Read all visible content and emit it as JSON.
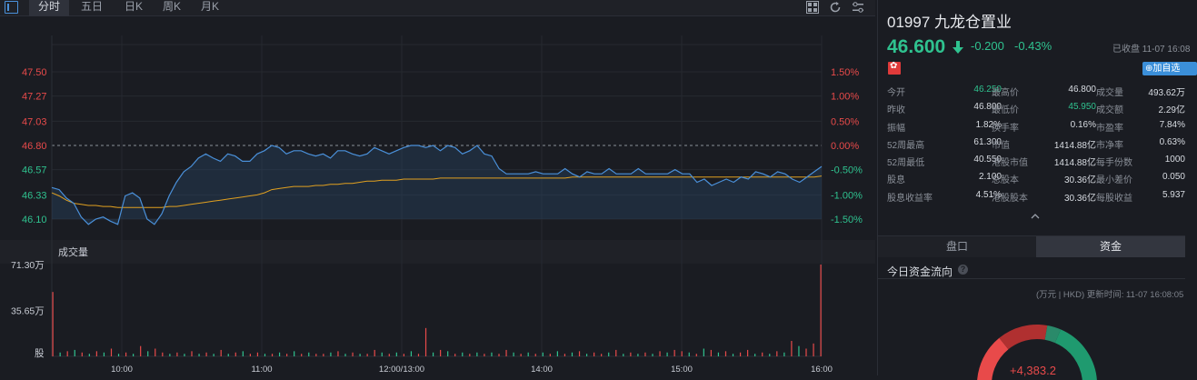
{
  "toolbar": {
    "tabs": [
      {
        "label": "分时",
        "active": true
      },
      {
        "label": "五日",
        "active": false
      },
      {
        "label": "日K",
        "active": false
      },
      {
        "label": "周K",
        "active": false
      },
      {
        "label": "月K",
        "active": false
      }
    ],
    "icons": [
      "grid-layout-icon",
      "refresh-icon",
      "settings-icon"
    ]
  },
  "colors": {
    "up": "#e84a4a",
    "down": "#2fc28f",
    "price_line": "#4a90d9",
    "avg_line": "#e0a020",
    "accent": "#3b8fd9"
  },
  "chart_data": {
    "type": "line",
    "title": "",
    "price_axis": {
      "ticks": [
        "47.50",
        "47.27",
        "47.03",
        "46.80",
        "46.57",
        "46.33",
        "46.10"
      ],
      "tick_values": [
        47.5,
        47.27,
        47.03,
        46.8,
        46.57,
        46.33,
        46.1
      ],
      "ylim": [
        46.1,
        47.5
      ],
      "reference": 46.8
    },
    "percent_axis": {
      "ticks": [
        "1.50%",
        "1.00%",
        "0.50%",
        "0.00%",
        "-0.50%",
        "-1.00%",
        "-1.50%"
      ]
    },
    "time_axis": {
      "ticks": [
        "10:00",
        "11:00",
        "12:00/13:00",
        "14:00",
        "15:00",
        "16:00"
      ]
    },
    "volume_panel": {
      "title": "成交量",
      "ticks": [
        "71.30万",
        "35.65万",
        "股"
      ],
      "max": 71.3
    },
    "price_series": [
      46.4,
      46.38,
      46.3,
      46.25,
      46.12,
      46.05,
      46.1,
      46.12,
      46.08,
      46.05,
      46.32,
      46.35,
      46.3,
      46.1,
      46.05,
      46.15,
      46.32,
      46.45,
      46.55,
      46.6,
      46.68,
      46.72,
      46.68,
      46.65,
      46.72,
      46.7,
      46.65,
      46.65,
      46.72,
      46.75,
      46.8,
      46.78,
      46.72,
      46.75,
      46.75,
      46.72,
      46.7,
      46.72,
      46.68,
      46.75,
      46.75,
      46.72,
      46.7,
      46.72,
      46.78,
      46.75,
      46.72,
      46.75,
      46.78,
      46.8,
      46.8,
      46.78,
      46.8,
      46.75,
      46.8,
      46.78,
      46.72,
      46.75,
      46.8,
      46.72,
      46.7,
      46.58,
      46.53,
      46.53,
      46.53,
      46.53,
      46.55,
      46.53,
      46.53,
      46.53,
      46.58,
      46.53,
      46.5,
      46.55,
      46.53,
      46.53,
      46.58,
      46.53,
      46.53,
      46.53,
      46.58,
      46.53,
      46.53,
      46.53,
      46.53,
      46.57,
      46.53,
      46.53,
      46.45,
      46.48,
      46.42,
      46.45,
      46.48,
      46.45,
      46.5,
      46.48,
      46.55,
      46.53,
      46.5,
      46.55,
      46.53,
      46.48,
      46.45,
      46.5,
      46.55,
      46.6
    ],
    "avg_series": [
      46.35,
      46.32,
      46.28,
      46.25,
      46.24,
      46.23,
      46.23,
      46.22,
      46.22,
      46.21,
      46.21,
      46.21,
      46.21,
      46.21,
      46.21,
      46.21,
      46.22,
      46.22,
      46.23,
      46.24,
      46.25,
      46.26,
      46.27,
      46.28,
      46.29,
      46.3,
      46.31,
      46.32,
      46.33,
      46.35,
      46.38,
      46.39,
      46.4,
      46.41,
      46.41,
      46.41,
      46.42,
      46.42,
      46.43,
      46.43,
      46.44,
      46.44,
      46.45,
      46.46,
      46.46,
      46.47,
      46.47,
      46.47,
      46.48,
      46.48,
      46.48,
      46.48,
      46.48,
      46.49,
      46.49,
      46.49,
      46.49,
      46.49,
      46.49,
      46.49,
      46.49,
      46.49,
      46.49,
      46.49,
      46.49,
      46.49,
      46.49,
      46.49,
      46.49,
      46.49,
      46.49,
      46.5,
      46.5,
      46.5,
      46.5,
      46.5,
      46.5,
      46.5,
      46.5,
      46.5,
      46.5,
      46.5,
      46.5,
      46.5,
      46.5,
      46.5,
      46.5,
      46.5,
      46.5,
      46.5,
      46.5,
      46.5,
      46.5,
      46.5,
      46.5,
      46.5,
      46.5,
      46.5,
      46.5,
      46.5,
      46.5,
      46.5,
      46.5,
      46.5,
      46.5,
      46.51
    ],
    "volume_series": [
      50,
      3,
      4,
      5,
      3,
      2,
      4,
      3,
      6,
      2,
      3,
      2,
      8,
      4,
      6,
      3,
      2,
      3,
      2,
      4,
      2,
      3,
      2,
      5,
      2,
      3,
      4,
      2,
      3,
      2,
      2,
      3,
      2,
      4,
      2,
      3,
      2,
      2,
      3,
      4,
      2,
      3,
      2,
      2,
      5,
      3,
      2,
      3,
      2,
      4,
      2,
      22,
      3,
      5,
      4,
      2,
      3,
      2,
      3,
      2,
      3,
      2,
      5,
      3,
      2,
      3,
      2,
      3,
      2,
      4,
      2,
      3,
      4,
      2,
      3,
      2,
      3,
      5,
      2,
      3,
      2,
      3,
      2,
      4,
      3,
      5,
      4,
      3,
      2,
      6,
      5,
      3,
      4,
      2,
      3,
      5,
      2,
      3,
      2,
      4,
      3,
      12,
      8,
      6,
      10,
      71.3
    ],
    "volume_up": [
      true,
      false,
      true,
      false,
      true,
      false,
      true,
      false,
      true,
      false,
      true,
      false,
      true,
      false,
      true,
      true,
      false,
      true,
      false,
      true,
      false,
      true,
      false,
      true,
      false,
      true,
      false,
      true,
      true,
      false,
      true,
      false,
      true,
      false,
      true,
      false,
      true,
      true,
      false,
      true,
      false,
      true,
      false,
      true,
      true,
      false,
      true,
      false,
      true,
      false,
      true,
      true,
      false,
      true,
      false,
      true,
      false,
      true,
      false,
      true,
      false,
      true,
      true,
      false,
      true,
      false,
      true,
      false,
      true,
      false,
      true,
      false,
      true,
      false,
      true,
      true,
      false,
      true,
      false,
      true,
      false,
      true,
      false,
      true,
      false,
      true,
      true,
      false,
      true,
      false,
      true,
      false,
      true,
      false,
      true,
      true,
      false,
      true,
      false,
      true,
      false,
      true,
      false,
      true,
      true,
      true
    ]
  },
  "stock": {
    "title": "01997 九龙仓置业",
    "price": "46.600",
    "change": "-0.200",
    "change_pct": "-0.43%",
    "status": "已收盘 11-07 16:08",
    "add_label": "⊕加自选"
  },
  "quote_grid": [
    [
      {
        "l": "今开",
        "v": "46.250",
        "c": "green"
      },
      {
        "l": "最高价",
        "v": "46.800",
        "c": "white"
      },
      {
        "l": "成交量",
        "v": "493.62万",
        "c": "white"
      }
    ],
    [
      {
        "l": "昨收",
        "v": "46.800",
        "c": "white"
      },
      {
        "l": "最低价",
        "v": "45.950",
        "c": "green"
      },
      {
        "l": "成交额",
        "v": "2.29亿",
        "c": "white"
      }
    ],
    [
      {
        "l": "振幅",
        "v": "1.82%",
        "c": "white"
      },
      {
        "l": "换手率",
        "v": "0.16%",
        "c": "white"
      },
      {
        "l": "市盈率",
        "v": "7.84%",
        "c": "white"
      }
    ],
    [
      {
        "l": "52周最高",
        "v": "61.300",
        "c": "white"
      },
      {
        "l": "市值",
        "v": "1414.88亿",
        "c": "white"
      },
      {
        "l": "市净率",
        "v": "0.63%",
        "c": "white"
      }
    ],
    [
      {
        "l": "52周最低",
        "v": "40.550",
        "c": "white"
      },
      {
        "l": "港股市值",
        "v": "1414.88亿",
        "c": "white"
      },
      {
        "l": "每手份数",
        "v": "1000",
        "c": "white"
      }
    ],
    [
      {
        "l": "股息",
        "v": "2.100",
        "c": "white"
      },
      {
        "l": "总股本",
        "v": "30.36亿",
        "c": "white"
      },
      {
        "l": "最小差价",
        "v": "0.050",
        "c": "white"
      }
    ],
    [
      {
        "l": "股息收益率",
        "v": "4.51%",
        "c": "white"
      },
      {
        "l": "港股股本",
        "v": "30.36亿",
        "c": "white"
      },
      {
        "l": "每股收益",
        "v": "5.937",
        "c": "white"
      }
    ]
  ],
  "segment": {
    "tab1": "盘口",
    "tab2": "资金"
  },
  "fund_flow": {
    "title": "今日资金流向",
    "note": "(万元 | HKD) 更新时间: 11-07 16:08:05",
    "value": "+4,383.2",
    "inflow_fraction": 0.55
  }
}
